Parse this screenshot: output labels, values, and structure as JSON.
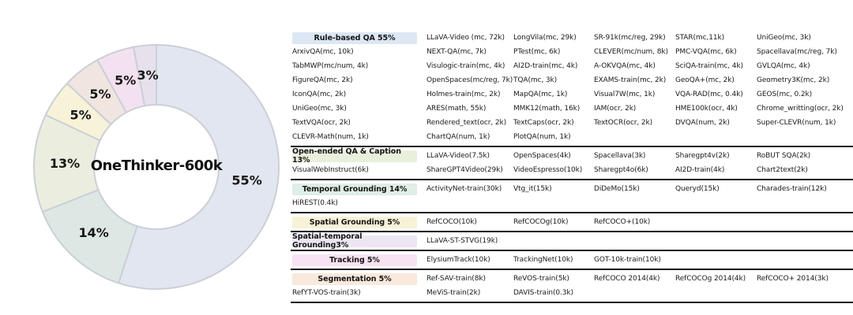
{
  "chart_data": [
    {
      "type": "pie",
      "subtype": "donut",
      "center_label": "OneThinker-600k",
      "start_angle": "top",
      "direction": "clockwise",
      "legend_position": "none",
      "slice_stroke_color": "#cbcfd6",
      "segments": [
        {
          "label": "Rule-based QA",
          "value": 55,
          "text": "55%",
          "color": "#e2e6f0"
        },
        {
          "label": "Temporal Grounding",
          "value": 14,
          "text": "14%",
          "color": "#dde8e4"
        },
        {
          "label": "Open-ended QA & Caption",
          "value": 13,
          "text": "13%",
          "color": "#ebeedf"
        },
        {
          "label": "Spatial Grounding",
          "value": 5,
          "text": "5%",
          "color": "#f7f2d8"
        },
        {
          "label": "Segmentation",
          "value": 5,
          "text": "5%",
          "color": "#f0e5df"
        },
        {
          "label": "Tracking",
          "value": 5,
          "text": "5%",
          "color": "#f4e1f0"
        },
        {
          "label": "Spatial-temporal Grounding",
          "value": 3,
          "text": "3%",
          "color": "#e6e1ec"
        }
      ]
    },
    {
      "type": "table",
      "sections": [
        {
          "header": {
            "label": "Rule-based QA 55%",
            "bg": "#dce7f3"
          },
          "header_row": [
            "LLaVA-Video (mc, 72k)",
            "LongVila(mc, 29k)",
            "SR-91k(mc/reg, 29k)",
            "STAR(mc,11k)",
            "UniGeo(mc, 3k)"
          ],
          "rows": [
            [
              "ArxivQA(mc, 10k)",
              "NEXT-QA(mc, 7k)",
              "PTest(mc, 6k)",
              "CLEVER(mc/num, 8k)",
              "PMC-VQA(mc, 6k)",
              "Spacellava(mc/reg, 7k)"
            ],
            [
              "TabMWP(mc/num, 4k)",
              "Visulogic-train(mc, 4k)",
              "AI2D-train(mc, 4k)",
              "A-OKVQA(mc, 4k)",
              "SciQA-train(mc, 4k)",
              "GVLQA(mc, 4k)"
            ],
            [
              "FigureQA(mc, 2k)",
              "OpenSpaces(mc/reg, 7k)",
              "TQA(mc, 3k)",
              "EXAMS-train(mc, 2k)",
              "GeoQA+(mc, 2k)",
              "Geometry3K(mc, 2k)"
            ],
            [
              "IconQA(mc, 2k)",
              "Holmes-train(mc, 2k)",
              "MapQA(mc, 1k)",
              "Visual7W(mc, 1k)",
              "VQA-RAD(mc, 0.4k)",
              "GEOS(mc, 0.2k)"
            ],
            [
              "UniGeo(mc, 3k)",
              "ARES(math, 55k)",
              "MMK12(math, 16k)",
              "IAM(ocr, 2k)",
              "HME100k(ocr, 4k)",
              "Chrome_writting(ocr, 2k)"
            ],
            [
              "TextVQA(ocr, 2k)",
              "Rendered_text(ocr, 2k)",
              "TextCaps(ocr, 2k)",
              "TextOCR(ocr, 2k)",
              "DVQA(num, 2k)",
              "Super-CLEVR(num, 1k)"
            ],
            [
              "CLEVR-Math(num, 1k)",
              "ChartQA(num, 1k)",
              "PlotQA(num, 1k)",
              "",
              "",
              ""
            ]
          ]
        },
        {
          "header": {
            "label": "Open-ended QA & Caption 13%",
            "bg": "#e9efdc"
          },
          "header_row": [
            "LLaVA-Video(7.5k)",
            "OpenSpaces(4k)",
            "Spacellava(3k)",
            "Sharegpt4v(2k)",
            "RoBUT SQA(2k)"
          ],
          "rows": [
            [
              "VisualWebInstruct(6k)",
              "ShareGPT4Video(29k)",
              "VideoEspresso(10k)",
              "Sharegpt4o(6k)",
              "AI2D-train(4k)",
              "Chart2text(2k)"
            ]
          ]
        },
        {
          "header": {
            "label": "Temporal Grounding 14%",
            "bg": "#dfeee7"
          },
          "header_row": [
            "ActivityNet-train(30k)",
            "Vtg_it(15k)",
            "DiDeMo(15k)",
            "Queryd(15k)",
            "Charades-train(12k)"
          ],
          "rows": [
            [
              "HiREST(0.4k)",
              "",
              "",
              "",
              "",
              ""
            ]
          ]
        },
        {
          "header": {
            "label": "Spatial Grounding 5%",
            "bg": "#f7f2d7"
          },
          "header_row": [
            "RefCOCO(10k)",
            "RefCOCOg(10k)",
            "RefCOCO+(10k)",
            "",
            ""
          ],
          "rows": []
        },
        {
          "header": {
            "label": "Spatial-temporal Grounding3%",
            "bg": "#ece6f3"
          },
          "header_row": [
            "LLaVA-ST-STVG(19k)",
            "",
            "",
            "",
            ""
          ],
          "rows": []
        },
        {
          "header": {
            "label": "Tracking 5%",
            "bg": "#f8e3f2"
          },
          "header_row": [
            "ElysiumTrack(10k)",
            "TrackingNet(10k)",
            "GOT-10k-train(10k)",
            "",
            ""
          ],
          "rows": []
        },
        {
          "header": {
            "label": "Segmentation 5%",
            "bg": "#f9e9dc"
          },
          "header_row": [
            "Ref-SAV-train(8k)",
            "ReVOS-train(5k)",
            "RefCOCO 2014(4k)",
            "RefCOCOg 2014(4k)",
            "RefCOCO+ 2014(3k)"
          ],
          "rows": [
            [
              "RefYT-VOS-train(3k)",
              "MeViS-train(2k)",
              "DAVIS-train(0.3k)",
              "",
              "",
              ""
            ]
          ]
        }
      ]
    }
  ]
}
